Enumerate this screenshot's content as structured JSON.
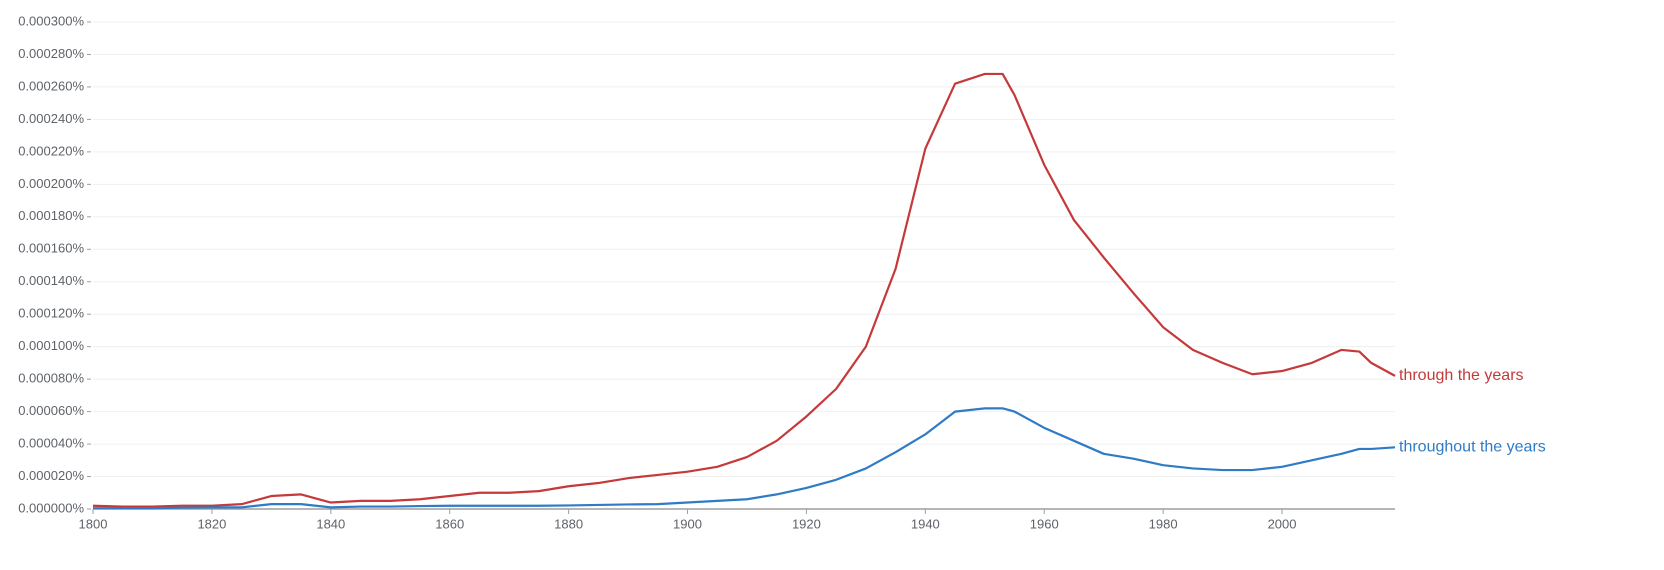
{
  "chart_data": {
    "type": "line",
    "x": [
      1800,
      1805,
      1810,
      1815,
      1820,
      1825,
      1830,
      1835,
      1840,
      1845,
      1850,
      1855,
      1860,
      1865,
      1870,
      1875,
      1880,
      1885,
      1890,
      1895,
      1900,
      1905,
      1910,
      1915,
      1920,
      1925,
      1930,
      1935,
      1940,
      1945,
      1950,
      1953,
      1955,
      1960,
      1965,
      1970,
      1975,
      1980,
      1985,
      1990,
      1995,
      2000,
      2005,
      2010,
      2013,
      2015,
      2019
    ],
    "series": [
      {
        "name": "through the years",
        "color": "#c5393a",
        "values": [
          2e-06,
          1.5e-06,
          1.5e-06,
          2e-06,
          2e-06,
          3e-06,
          8e-06,
          9e-06,
          4e-06,
          5e-06,
          5e-06,
          6e-06,
          8e-06,
          1e-05,
          1e-05,
          1.1e-05,
          1.4e-05,
          1.6e-05,
          1.9e-05,
          2.1e-05,
          2.3e-05,
          2.6e-05,
          3.2e-05,
          4.2e-05,
          5.7e-05,
          7.4e-05,
          0.0001,
          0.000148,
          0.000222,
          0.000262,
          0.000268,
          0.000268,
          0.000255,
          0.000212,
          0.000178,
          0.000155,
          0.000133,
          0.000112,
          9.8e-05,
          9e-05,
          8.3e-05,
          8.5e-05,
          9e-05,
          9.8e-05,
          9.7e-05,
          9e-05,
          8.2e-05
        ]
      },
      {
        "name": "throughout the years",
        "color": "#2f7bc6",
        "values": [
          5e-07,
          5e-07,
          5e-07,
          8e-07,
          1e-06,
          1e-06,
          3e-06,
          3e-06,
          1e-06,
          1.5e-06,
          1.5e-06,
          1.8e-06,
          2e-06,
          2e-06,
          2e-06,
          2e-06,
          2.2e-06,
          2.5e-06,
          2.8e-06,
          3e-06,
          4e-06,
          5e-06,
          6e-06,
          9e-06,
          1.3e-05,
          1.8e-05,
          2.5e-05,
          3.5e-05,
          4.6e-05,
          6e-05,
          6.2e-05,
          6.2e-05,
          6e-05,
          5e-05,
          4.2e-05,
          3.4e-05,
          3.1e-05,
          2.7e-05,
          2.5e-05,
          2.4e-05,
          2.4e-05,
          2.6e-05,
          3e-05,
          3.4e-05,
          3.7e-05,
          3.7e-05,
          3.8e-05
        ]
      }
    ],
    "xlim": [
      1800,
      2019
    ],
    "xticks": [
      1800,
      1820,
      1840,
      1860,
      1880,
      1900,
      1920,
      1940,
      1960,
      1980,
      2000
    ],
    "ylim": [
      0,
      0.0003
    ],
    "yticks": [
      {
        "value": 0,
        "label": "0.000000%"
      },
      {
        "value": 2e-05,
        "label": "0.000020%"
      },
      {
        "value": 4e-05,
        "label": "0.000040%"
      },
      {
        "value": 6e-05,
        "label": "0.000060%"
      },
      {
        "value": 8e-05,
        "label": "0.000080%"
      },
      {
        "value": 0.0001,
        "label": "0.000100%"
      },
      {
        "value": 0.00012,
        "label": "0.000120%"
      },
      {
        "value": 0.00014,
        "label": "0.000140%"
      },
      {
        "value": 0.00016,
        "label": "0.000160%"
      },
      {
        "value": 0.00018,
        "label": "0.000180%"
      },
      {
        "value": 0.0002,
        "label": "0.000200%"
      },
      {
        "value": 0.00022,
        "label": "0.000220%"
      },
      {
        "value": 0.00024,
        "label": "0.000240%"
      },
      {
        "value": 0.00026,
        "label": "0.000260%"
      },
      {
        "value": 0.00028,
        "label": "0.000280%"
      },
      {
        "value": 0.0003,
        "label": "0.000300%"
      }
    ],
    "grid": true
  }
}
